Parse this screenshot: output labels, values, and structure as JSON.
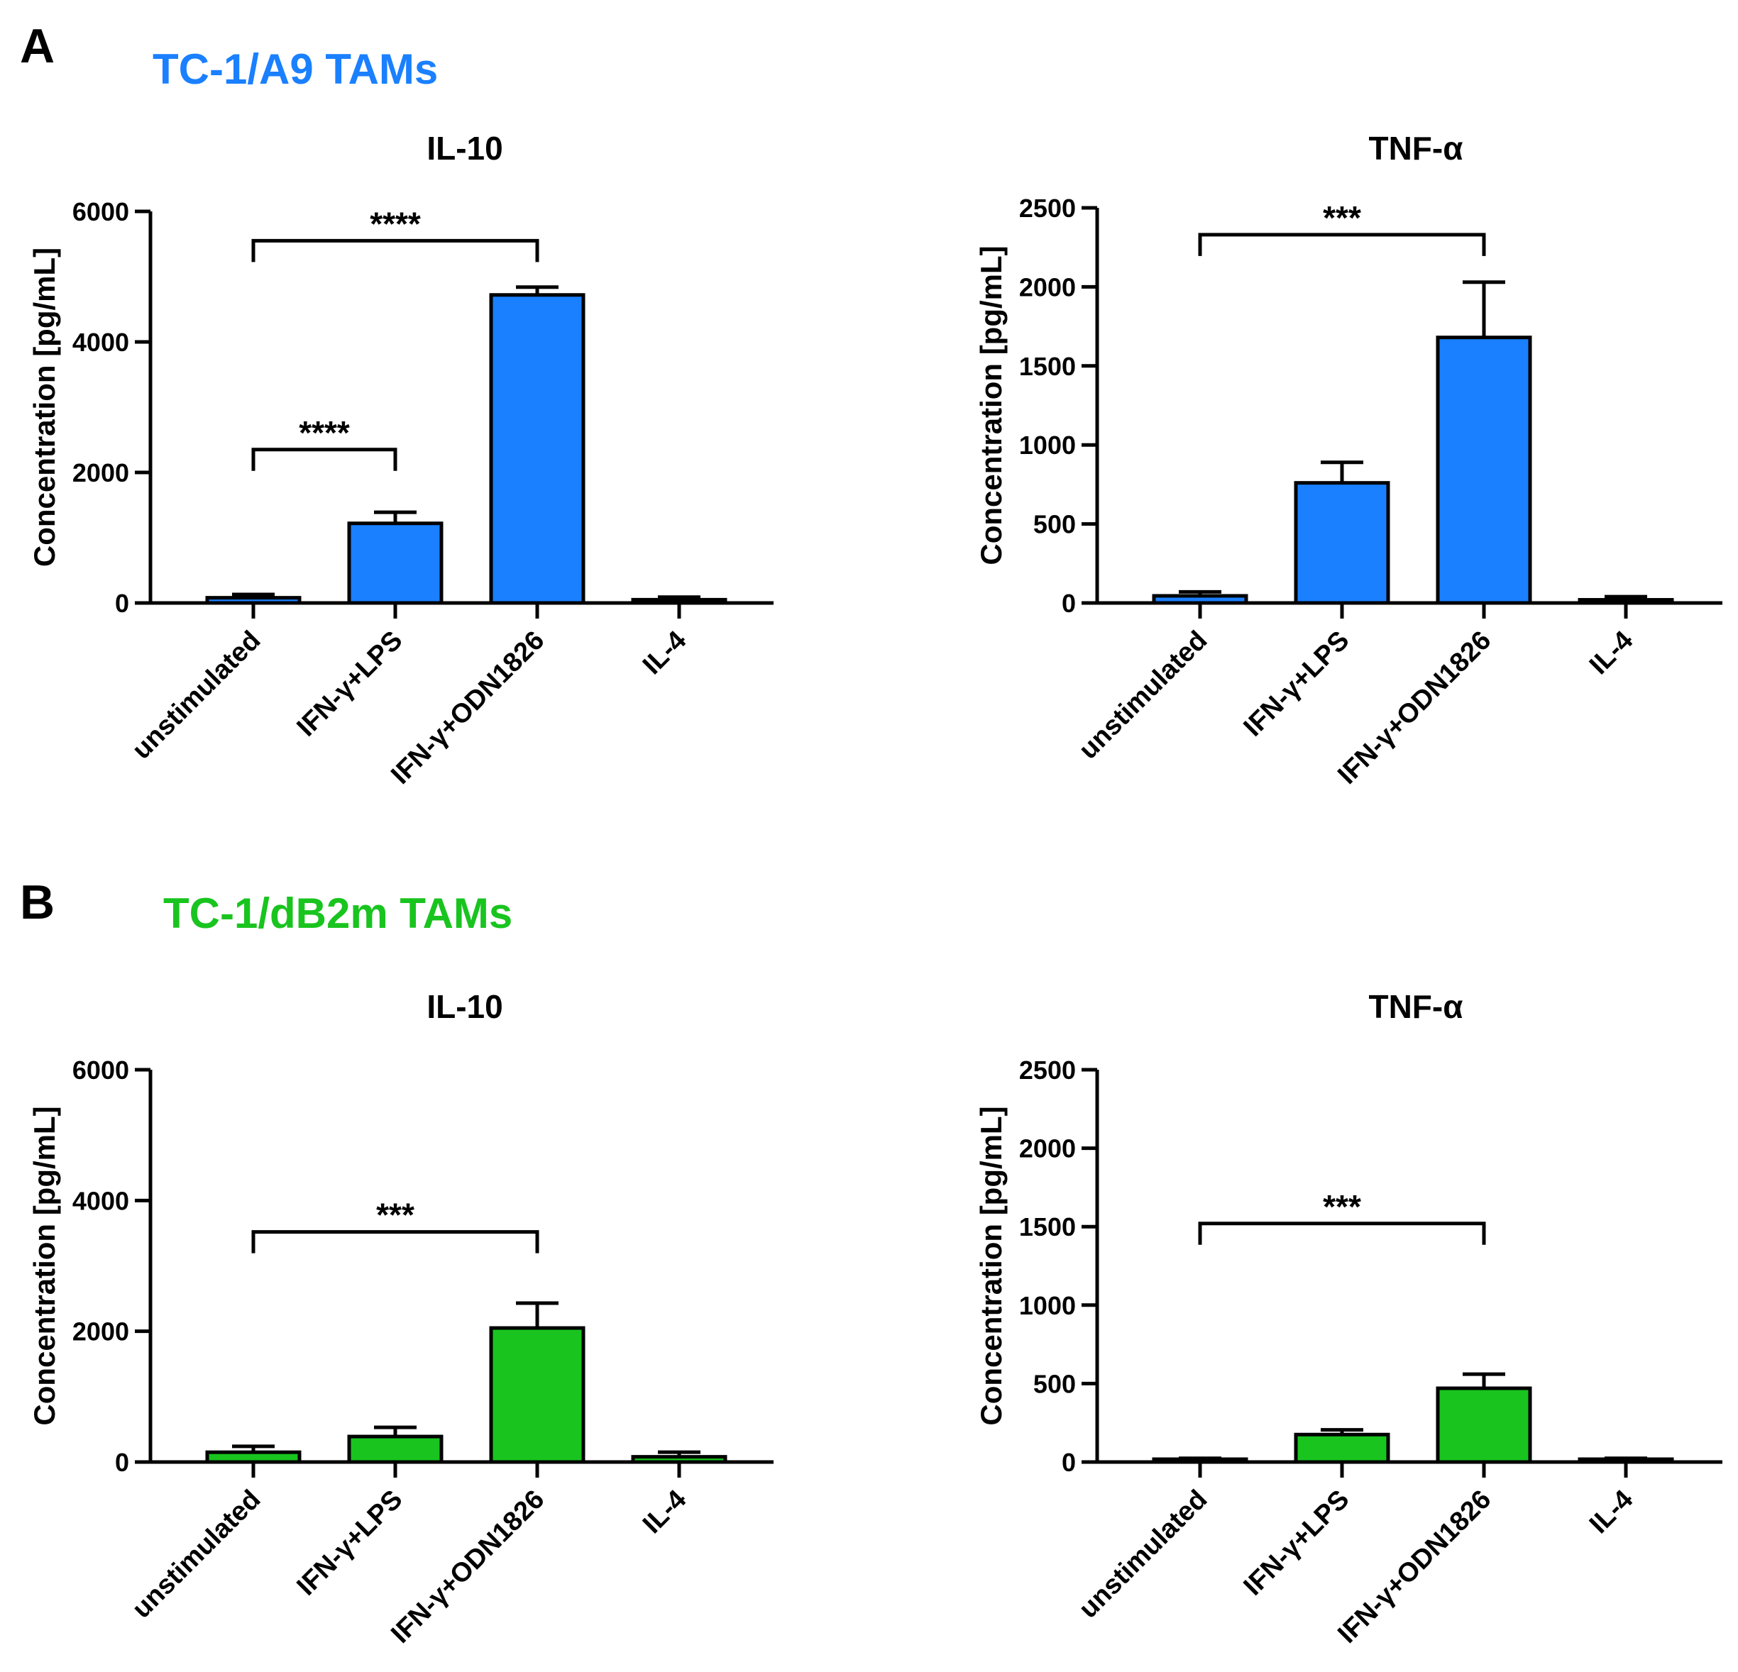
{
  "panels": [
    {
      "letter": "A",
      "title": "TC-1/A9 TAMs",
      "color": "#1a80ff"
    },
    {
      "letter": "B",
      "title": "TC-1/dB2m TAMs",
      "color": "#19c41f"
    }
  ],
  "chart_data": [
    {
      "type": "bar",
      "panel": "A",
      "title": "IL-10",
      "ylabel": "Concentration [pg/mL]",
      "xlabel": "",
      "categories": [
        "unstimulated",
        "IFN-γ+LPS",
        "IFN-γ+ODN1826",
        "IL-4"
      ],
      "values": [
        80,
        1220,
        4720,
        50
      ],
      "errors": [
        50,
        170,
        120,
        40
      ],
      "ylim": [
        0,
        6000
      ],
      "yticks": [
        0,
        2000,
        4000,
        6000
      ],
      "color": "#1a80ff",
      "significance": [
        {
          "from": 0,
          "to": 2,
          "label": "****",
          "y": 5550
        },
        {
          "from": 0,
          "to": 1,
          "label": "****",
          "y": 2350
        }
      ]
    },
    {
      "type": "bar",
      "panel": "A",
      "title": "TNF-α",
      "ylabel": "Concentration [pg/mL]",
      "xlabel": "",
      "categories": [
        "unstimulated",
        "IFN-γ+LPS",
        "IFN-γ+ODN1826",
        "IL-4"
      ],
      "values": [
        45,
        760,
        1680,
        20
      ],
      "errors": [
        25,
        130,
        350,
        20
      ],
      "ylim": [
        0,
        2500
      ],
      "yticks": [
        0,
        500,
        1000,
        1500,
        2000,
        2500
      ],
      "color": "#1a80ff",
      "significance": [
        {
          "from": 0,
          "to": 2,
          "label": "***",
          "y": 2330
        }
      ]
    },
    {
      "type": "bar",
      "panel": "B",
      "title": "IL-10",
      "ylabel": "Concentration [pg/mL]",
      "xlabel": "",
      "categories": [
        "unstimulated",
        "IFN-γ+LPS",
        "IFN-γ+ODN1826",
        "IL-4"
      ],
      "values": [
        150,
        390,
        2050,
        80
      ],
      "errors": [
        90,
        140,
        380,
        70
      ],
      "ylim": [
        0,
        6000
      ],
      "yticks": [
        0,
        2000,
        4000,
        6000
      ],
      "color": "#19c41f",
      "significance": [
        {
          "from": 0,
          "to": 2,
          "label": "***",
          "y": 3520
        }
      ]
    },
    {
      "type": "bar",
      "panel": "B",
      "title": "TNF-α",
      "ylabel": "Concentration [pg/mL]",
      "xlabel": "",
      "categories": [
        "unstimulated",
        "IFN-γ+LPS",
        "IFN-γ+ODN1826",
        "IL-4"
      ],
      "values": [
        12,
        175,
        470,
        12
      ],
      "errors": [
        12,
        30,
        90,
        12
      ],
      "ylim": [
        0,
        2500
      ],
      "yticks": [
        0,
        500,
        1000,
        1500,
        2000,
        2500
      ],
      "color": "#19c41f",
      "significance": [
        {
          "from": 0,
          "to": 2,
          "label": "***",
          "y": 1520
        }
      ]
    }
  ]
}
